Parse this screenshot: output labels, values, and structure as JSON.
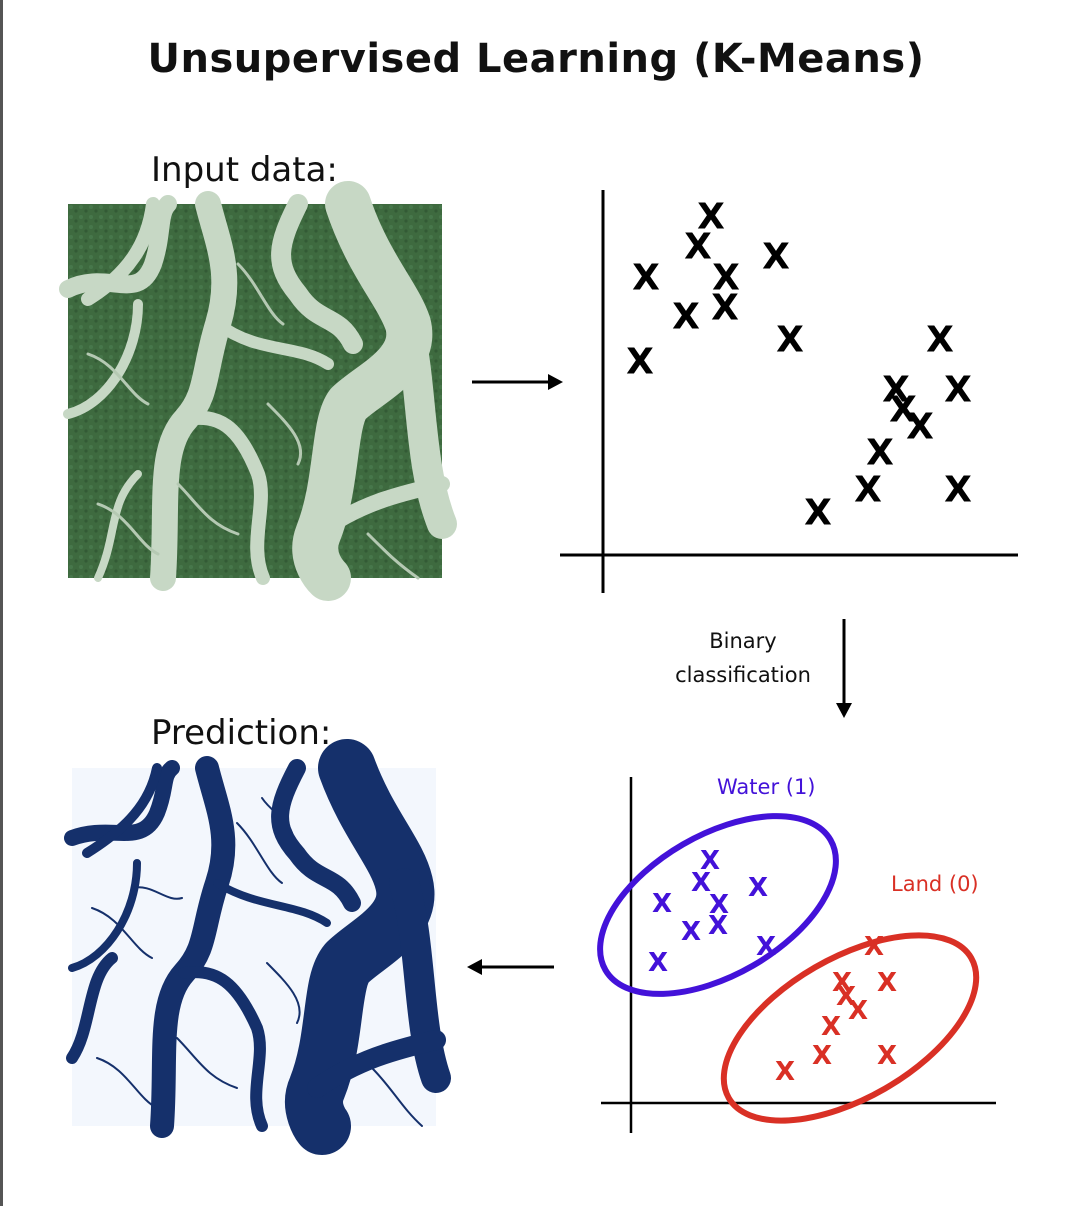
{
  "title": "Unsupervised Learning (K-Means)",
  "input_label": "Input data:",
  "prediction_label": "Prediction:",
  "arrow_label": [
    "Binary",
    "classification"
  ],
  "marker_glyph": "X",
  "clusters": {
    "water": {
      "label": "Water (1)",
      "color": "#4312d9"
    },
    "land": {
      "label": "Land (0)",
      "color": "#d93025"
    }
  },
  "colors": {
    "water_map": "#15306b",
    "land_map": "#f3f7fd",
    "satellite_land": "#3f6b3f",
    "satellite_water": "#c9d9c8",
    "ink": "#000000"
  },
  "icons": {
    "arrow_right": "arrow-right-icon",
    "arrow_down": "arrow-down-icon",
    "arrow_left": "arrow-left-icon"
  }
}
